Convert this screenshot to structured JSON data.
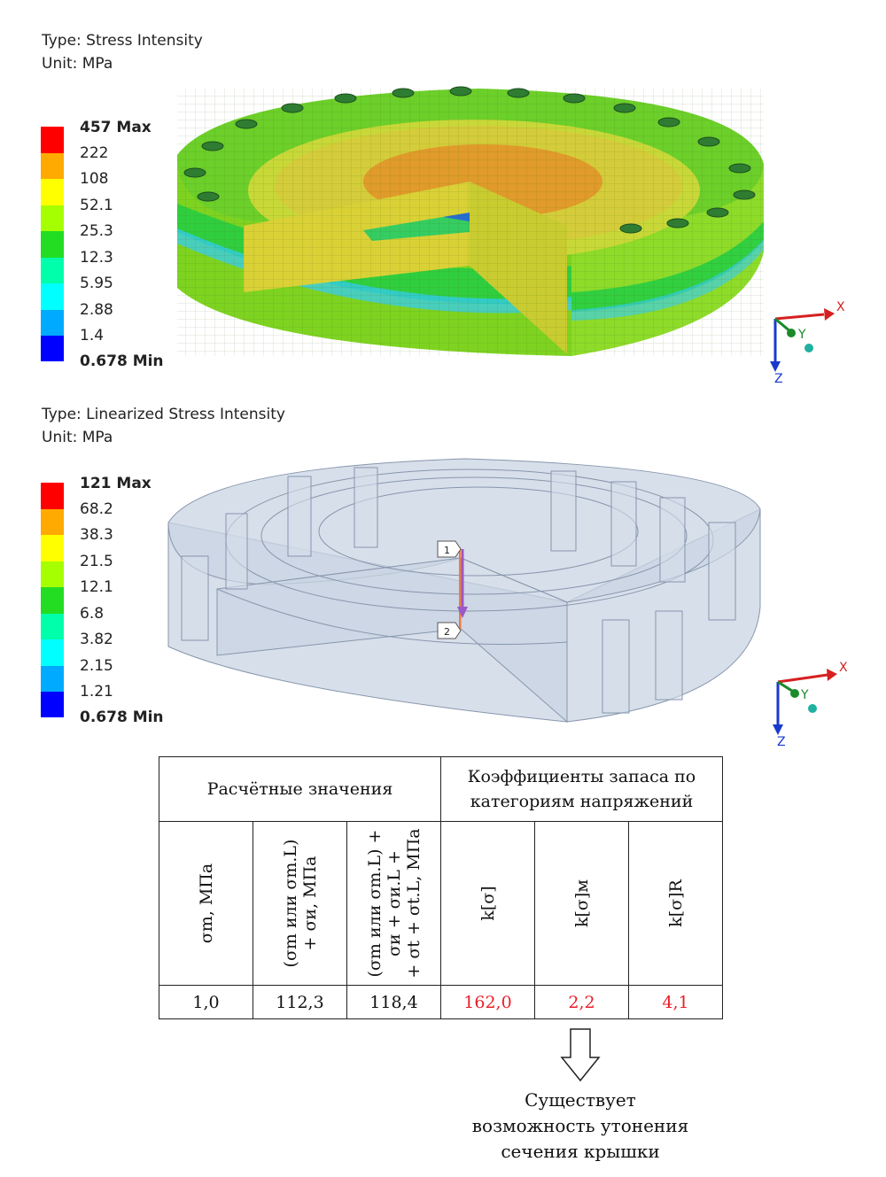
{
  "plot1": {
    "type_label": "Type: Stress Intensity",
    "unit_label": "Unit: MPa",
    "legend": {
      "labels": [
        "457 Max",
        "222",
        "108",
        "52.1",
        "25.3",
        "12.3",
        "5.95",
        "2.88",
        "1.4",
        "0.678 Min"
      ],
      "colors": [
        "#ff0000",
        "#ffaa00",
        "#ffff00",
        "#a6ff00",
        "#22dd22",
        "#00ffaa",
        "#00ffff",
        "#00aaff",
        "#0000ff"
      ]
    }
  },
  "plot2": {
    "type_label": "Type: Linearized Stress Intensity",
    "unit_label": "Unit: MPa",
    "legend": {
      "labels": [
        "121 Max",
        "68.2",
        "38.3",
        "21.5",
        "12.1",
        "6.8",
        "3.82",
        "2.15",
        "1.21",
        "0.678 Min"
      ],
      "colors": [
        "#ff0000",
        "#ffaa00",
        "#ffff00",
        "#a6ff00",
        "#22dd22",
        "#00ffaa",
        "#00ffff",
        "#00aaff",
        "#0000ff"
      ]
    },
    "path_points": [
      "1",
      "2"
    ]
  },
  "axes": {
    "x": "X",
    "y": "Y",
    "z": "Z"
  },
  "table": {
    "group1": "Расчётные значения",
    "group2_line1": "Коэффициенты запаса по",
    "group2_line2": "категориям напряжений",
    "headers": {
      "h1": "σm, МПа",
      "h2_line1": "(σm или σm.L)",
      "h2_line2": "+ σи, МПа",
      "h3_line1": "(σm или σm.L) +",
      "h3_line2": "σи + σи.L +",
      "h3_line3": "+ σt + σt.L, МПа",
      "h4": "k[σ]",
      "h5": "k[σ]м",
      "h6": "k[σ]R"
    },
    "values": [
      "1,0",
      "112,3",
      "118,4",
      "162,0",
      "2,2",
      "4,1"
    ]
  },
  "note": {
    "line1": "Существует",
    "line2": "возможность утонения",
    "line3": "сечения крышки"
  }
}
